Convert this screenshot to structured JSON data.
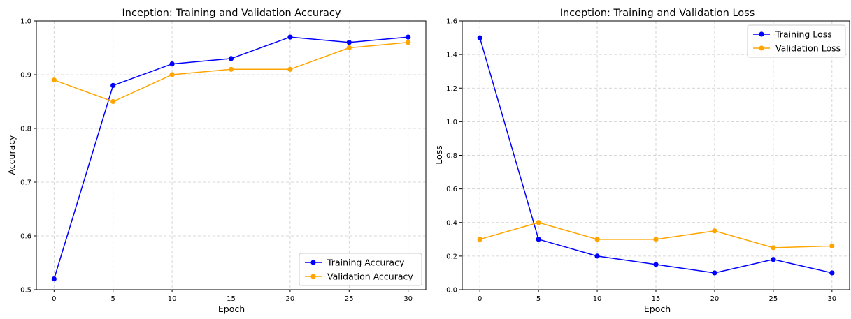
{
  "chart_data": [
    {
      "type": "line",
      "title": "Inception: Training and Validation Accuracy",
      "xlabel": "Epoch",
      "ylabel": "Accuracy",
      "x": [
        0,
        5,
        10,
        15,
        20,
        25,
        30
      ],
      "xlim": [
        -1.5,
        31.5
      ],
      "ylim": [
        0.5,
        1.0
      ],
      "xticks": [
        0,
        5,
        10,
        15,
        20,
        25,
        30
      ],
      "yticks": [
        0.5,
        0.6,
        0.7,
        0.8,
        0.9,
        1.0
      ],
      "grid": true,
      "legend_position": "bottom-right",
      "series": [
        {
          "name": "Training Accuracy",
          "color": "#0000ff",
          "values": [
            0.52,
            0.88,
            0.92,
            0.93,
            0.97,
            0.96,
            0.97
          ]
        },
        {
          "name": "Validation Accuracy",
          "color": "#ffa500",
          "values": [
            0.89,
            0.85,
            0.9,
            0.91,
            0.91,
            0.95,
            0.96
          ]
        }
      ]
    },
    {
      "type": "line",
      "title": "Inception: Training and Validation Loss",
      "xlabel": "Epoch",
      "ylabel": "Loss",
      "x": [
        0,
        5,
        10,
        15,
        20,
        25,
        30
      ],
      "xlim": [
        -1.5,
        31.5
      ],
      "ylim": [
        0.0,
        1.6
      ],
      "xticks": [
        0,
        5,
        10,
        15,
        20,
        25,
        30
      ],
      "yticks": [
        0.0,
        0.2,
        0.4,
        0.6,
        0.8,
        1.0,
        1.2,
        1.4,
        1.6
      ],
      "grid": true,
      "legend_position": "top-right",
      "series": [
        {
          "name": "Training Loss",
          "color": "#0000ff",
          "values": [
            1.5,
            0.3,
            0.2,
            0.15,
            0.1,
            0.18,
            0.1
          ]
        },
        {
          "name": "Validation Loss",
          "color": "#ffa500",
          "values": [
            0.3,
            0.4,
            0.3,
            0.3,
            0.35,
            0.25,
            0.26
          ]
        }
      ]
    }
  ]
}
